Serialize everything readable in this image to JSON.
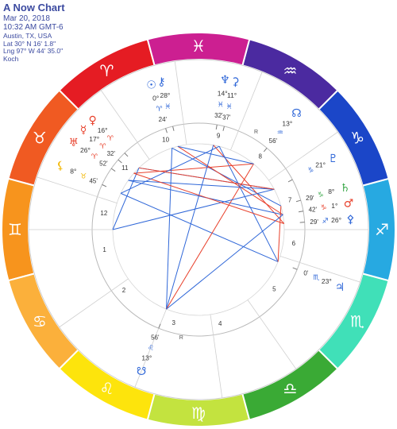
{
  "header": {
    "title": "A Now Chart",
    "date": "Mar 20, 2018",
    "time": "10:32 AM GMT-6",
    "location": "Austin, TX, USA",
    "latitude": "Lat 30° N 16' 1.8\"",
    "longitude": "Lng 97° W 44' 35.0\"",
    "house_system": "Koch"
  },
  "colors": {
    "fire": "#e8412c",
    "earth": "#3aa84a",
    "air": "#f2b600",
    "water": "#2f67d8"
  },
  "zodiac": [
    {
      "name": "aries",
      "symbol": "♈",
      "color": "#e51c23"
    },
    {
      "name": "taurus",
      "symbol": "♉",
      "color": "#f05a22"
    },
    {
      "name": "gemini",
      "symbol": "♊",
      "color": "#f7941d"
    },
    {
      "name": "cancer",
      "symbol": "♋",
      "color": "#fbb03b"
    },
    {
      "name": "leo",
      "symbol": "♌",
      "color": "#fde40c"
    },
    {
      "name": "virgo",
      "symbol": "♍",
      "color": "#c3e33f"
    },
    {
      "name": "libra",
      "symbol": "♎",
      "color": "#3aaa35"
    },
    {
      "name": "scorpio",
      "symbol": "♏",
      "color": "#40e0b8"
    },
    {
      "name": "sagittarius",
      "symbol": "♐",
      "color": "#27a9e1"
    },
    {
      "name": "capricorn",
      "symbol": "♑",
      "color": "#1b46c8"
    },
    {
      "name": "aquarius",
      "symbol": "♒",
      "color": "#4b2aa0"
    },
    {
      "name": "pisces",
      "symbol": "♓",
      "color": "#cc1f91"
    }
  ],
  "house_numbers": [
    "1",
    "2",
    "3",
    "4",
    "5",
    "6",
    "7",
    "8",
    "9",
    "10",
    "11",
    "12"
  ],
  "planets": [
    {
      "name": "sun",
      "glyph": "☉",
      "degree": "0°",
      "sign_glyph": "♈",
      "minutes": "24'",
      "color": "#2f67d8"
    },
    {
      "name": "chiron",
      "glyph": "⚷",
      "degree": "28°",
      "sign_glyph": "♓",
      "minutes": "",
      "color": "#2f67d8"
    },
    {
      "name": "neptune",
      "glyph": "♆",
      "degree": "14°",
      "sign_glyph": "♓",
      "minutes": "32'",
      "color": "#2f67d8"
    },
    {
      "name": "ceres",
      "glyph": "⚳",
      "degree": "11°",
      "sign_glyph": "♓",
      "minutes": "37'",
      "color": "#2f67d8"
    },
    {
      "name": "venus",
      "glyph": "♀",
      "degree": "16°",
      "sign_glyph": "♈",
      "minutes": "",
      "color": "#e8412c"
    },
    {
      "name": "mercury",
      "glyph": "☿",
      "degree": "17°",
      "sign_glyph": "♈",
      "minutes": "32'",
      "color": "#e8412c"
    },
    {
      "name": "uranus",
      "glyph": "♅",
      "degree": "26°",
      "sign_glyph": "♈",
      "minutes": "52'",
      "color": "#e8412c"
    },
    {
      "name": "lilith",
      "glyph": "⚸",
      "degree": "8°",
      "sign_glyph": "♉",
      "minutes": "45'",
      "color": "#f2b600"
    },
    {
      "name": "north-node",
      "glyph": "☊",
      "degree": "13°",
      "sign_glyph": "♒",
      "minutes": "56'",
      "color": "#2f67d8"
    },
    {
      "name": "pluto",
      "glyph": "♇",
      "degree": "21°",
      "sign_glyph": "♑",
      "minutes": "",
      "color": "#2f67d8"
    },
    {
      "name": "saturn",
      "glyph": "♄",
      "degree": "8°",
      "sign_glyph": "♑",
      "minutes": "29'",
      "color": "#3aa84a"
    },
    {
      "name": "mars",
      "glyph": "♂",
      "degree": "1°",
      "sign_glyph": "♑",
      "minutes": "42'",
      "color": "#e8412c"
    },
    {
      "name": "pallas",
      "glyph": "⚴",
      "degree": "26°",
      "sign_glyph": "♐",
      "minutes": "29'",
      "color": "#2f67d8"
    },
    {
      "name": "jupiter",
      "glyph": "♃",
      "degree": "23°",
      "sign_glyph": "♏",
      "minutes": "0'",
      "color": "#2f67d8"
    },
    {
      "name": "south-node",
      "glyph": "☋",
      "degree": "13°",
      "sign_glyph": "♌",
      "minutes": "56'",
      "color": "#2f67d8"
    }
  ],
  "retrograde_marker": "R"
}
